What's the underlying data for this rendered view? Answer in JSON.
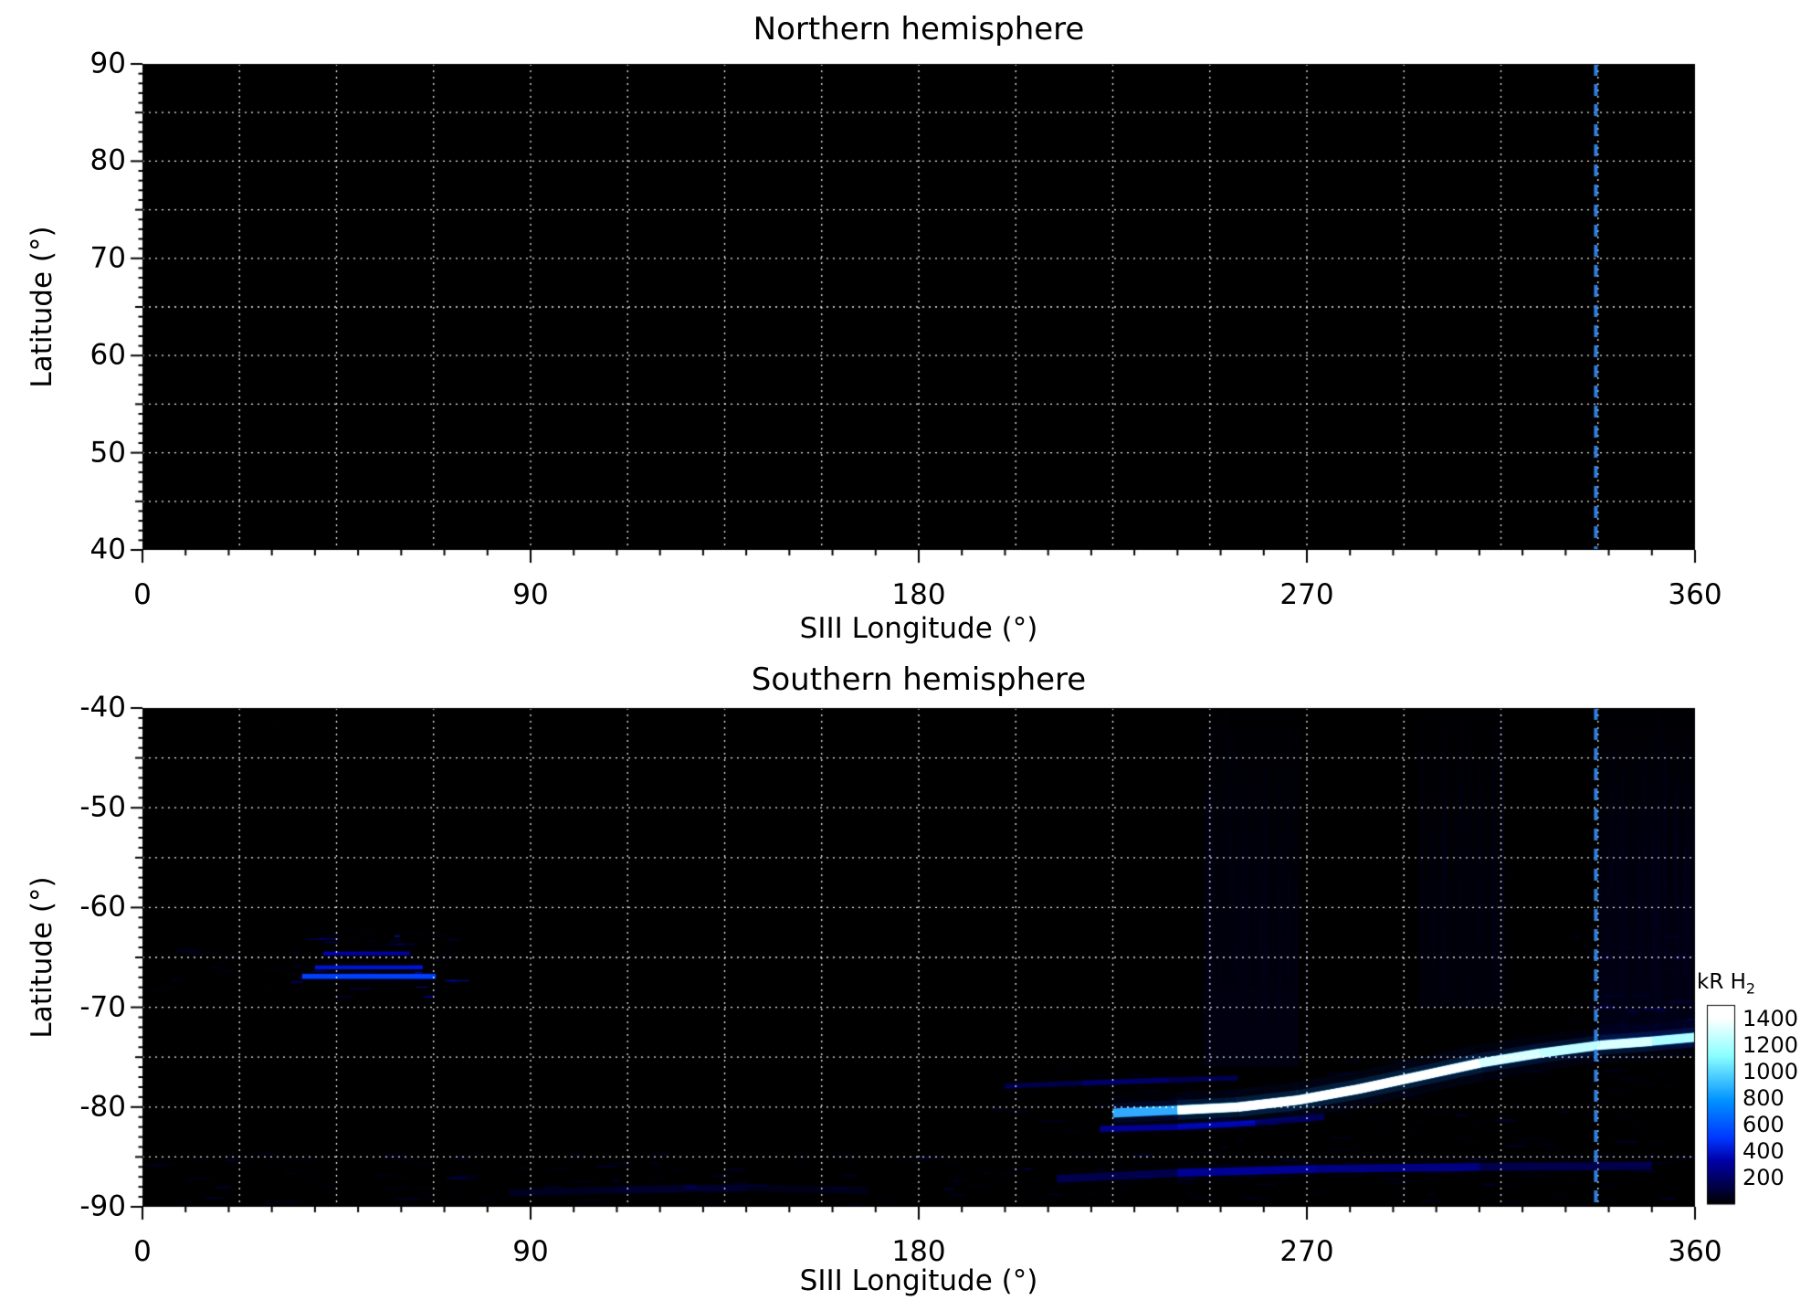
{
  "figure": {
    "background": "#ffffff",
    "marker_color": "#2f7fe0"
  },
  "chart_data": [
    {
      "type": "heatmap",
      "title": "Northern hemisphere",
      "xlabel": "SIII Longitude (°)",
      "ylabel": "Latitude (°)",
      "xlim": [
        0,
        360
      ],
      "ylim": [
        40,
        90
      ],
      "xticks": [
        0,
        90,
        180,
        270,
        360
      ],
      "yticks": [
        40,
        50,
        60,
        70,
        80,
        90
      ],
      "grid": {
        "x_step": 22.5,
        "y_step": 5,
        "style": "dotted",
        "color": "#ffffff"
      },
      "background": "#000000",
      "marker_line": {
        "x": 337,
        "style": "dashed",
        "color": "#2f7fe0"
      },
      "features": []
    },
    {
      "type": "heatmap",
      "title": "Southern hemisphere",
      "xlabel": "SIII Longitude (°)",
      "ylabel": "Latitude (°)",
      "xlim": [
        0,
        360
      ],
      "ylim": [
        -90,
        -40
      ],
      "xticks": [
        0,
        90,
        180,
        270,
        360
      ],
      "yticks": [
        -90,
        -80,
        -70,
        -60,
        -50,
        -40
      ],
      "grid": {
        "x_step": 22.5,
        "y_step": 5,
        "style": "dotted",
        "color": "#ffffff"
      },
      "background": "#000000",
      "marker_line": {
        "x": 337,
        "style": "dashed",
        "color": "#2f7fe0"
      },
      "colorbar": {
        "label": "kR H",
        "label_sub": "2",
        "ticks": [
          1400,
          1200,
          1000,
          800,
          600,
          400,
          200
        ],
        "vmin": 0,
        "vmax": 1500
      },
      "features": [
        {
          "kind": "noise",
          "amount": 1600,
          "peak": 85
        },
        {
          "kind": "patch",
          "lon": [
            33,
            72
          ],
          "lat": [
            -69,
            -62.5
          ],
          "peak": 420,
          "density": 2.2
        },
        {
          "kind": "hstreak",
          "lon": [
            37,
            68
          ],
          "lat": -66.9,
          "peak": 820,
          "core": 0.5,
          "glow": 1.6
        },
        {
          "kind": "hstreak",
          "lon": [
            40,
            65
          ],
          "lat": -66.0,
          "peak": 600,
          "core": 0.4,
          "glow": 1.2
        },
        {
          "kind": "hstreak",
          "lon": [
            42,
            62
          ],
          "lat": -64.6,
          "peak": 470,
          "core": 0.4,
          "glow": 1.0
        },
        {
          "kind": "patch",
          "lon": [
            0,
            32
          ],
          "lat": [
            -68.5,
            -62.5
          ],
          "peak": 170,
          "density": 0.9
        },
        {
          "kind": "patch",
          "lon": [
            0,
            360
          ],
          "lat": [
            -90,
            -84.5
          ],
          "peak": 175,
          "density": 1.3
        },
        {
          "kind": "patch",
          "lon": [
            196,
            360
          ],
          "lat": [
            -85,
            -75
          ],
          "peak": 150,
          "density": 1.0
        },
        {
          "kind": "patch",
          "lon": [
            330,
            360
          ],
          "lat": [
            -74,
            -62
          ],
          "peak": 260,
          "density": 1.5
        },
        {
          "kind": "arc",
          "pts": [
            [
              225,
              -80.6
            ],
            [
              240,
              -80.3
            ],
            [
              254,
              -80.0
            ],
            [
              268,
              -79.3
            ],
            [
              282,
              -78.2
            ],
            [
              296,
              -76.9
            ],
            [
              310,
              -75.6
            ],
            [
              324,
              -74.6
            ],
            [
              338,
              -73.8
            ],
            [
              350,
              -73.4
            ],
            [
              360,
              -73.0
            ]
          ],
          "w": [
            0.45,
            0.85,
            1,
            1,
            1,
            1,
            0.95,
            0.8,
            0.9,
            0.85,
            0.8
          ],
          "peak": 1500,
          "core": 0.9,
          "glow": 3.6
        },
        {
          "kind": "arc",
          "pts": [
            [
              222,
              -82.2
            ],
            [
              240,
              -82.0
            ],
            [
              258,
              -81.6
            ],
            [
              274,
              -81.0
            ]
          ],
          "w": [
            0.5,
            0.75,
            0.6,
            0.4
          ],
          "peak": 520,
          "core": 0.6,
          "glow": 1.8
        },
        {
          "kind": "arc",
          "pts": [
            [
              200,
              -77.9
            ],
            [
              218,
              -77.6
            ],
            [
              238,
              -77.3
            ],
            [
              254,
              -77.1
            ]
          ],
          "w": [
            0.4,
            0.6,
            0.6,
            0.45
          ],
          "peak": 430,
          "core": 0.5,
          "glow": 1.6
        },
        {
          "kind": "arc",
          "pts": [
            [
              212,
              -87.2
            ],
            [
              240,
              -86.6
            ],
            [
              272,
              -86.2
            ],
            [
              310,
              -86.0
            ],
            [
              350,
              -85.9
            ]
          ],
          "w": [
            0.4,
            0.75,
            0.85,
            0.65,
            0.5
          ],
          "peak": 330,
          "core": 0.8,
          "glow": 2.6
        },
        {
          "kind": "arc",
          "pts": [
            [
              85,
              -88.6
            ],
            [
              110,
              -88.3
            ],
            [
              140,
              -88.1
            ],
            [
              168,
              -88.4
            ]
          ],
          "w": [
            0.35,
            0.6,
            0.5,
            0.3
          ],
          "peak": 220,
          "core": 0.7,
          "glow": 2.0
        },
        {
          "kind": "vband",
          "lon": [
            246,
            268
          ],
          "lat": [
            -76,
            -40
          ],
          "peak": 120
        },
        {
          "kind": "vband",
          "lon": [
            296,
            316
          ],
          "lat": [
            -70,
            -40
          ],
          "peak": 85
        },
        {
          "kind": "vband",
          "lon": [
            338,
            360
          ],
          "lat": [
            -74,
            -40
          ],
          "peak": 150
        }
      ]
    }
  ]
}
